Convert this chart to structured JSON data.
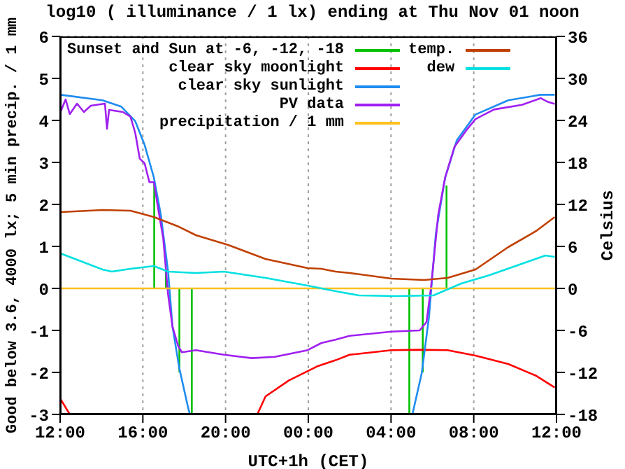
{
  "chart_data": {
    "type": "line",
    "title": "log10 ( illuminance / 1 lx) ending at Thu Nov 01 noon",
    "xlabel": "UTC+1h (CET)",
    "ylabel": "Good below 3.6, 4000 lx; 5 min precip. / 1 mm",
    "y2label": "Celsius",
    "xlim": [
      "--10-31T12:00",
      "--11-01T12:00"
    ],
    "xticks": [
      {
        "value": "--10-31T12:00",
        "label": "12:00"
      },
      {
        "value": "--10-31T16:00",
        "label": "16:00"
      },
      {
        "value": "--10-31T20:00",
        "label": "20:00"
      },
      {
        "value": "--11-01T00:00",
        "label": "00:00"
      },
      {
        "value": "--11-01T04:00",
        "label": "04:00"
      },
      {
        "value": "--11-01T08:00",
        "label": "08:00"
      },
      {
        "value": "--11-01T12:00",
        "label": "12:00"
      }
    ],
    "ylim": [
      -3,
      6
    ],
    "yticks": [
      -3,
      -2,
      -1,
      0,
      1,
      2,
      3,
      4,
      5,
      6
    ],
    "y2lim": [
      -18,
      36
    ],
    "y2ticks": [
      -18,
      -12,
      -6,
      0,
      6,
      12,
      18,
      24,
      30,
      36
    ],
    "grid": true,
    "legend": "top",
    "marker": "none",
    "line_style": "solid",
    "series": [
      {
        "name": "Sunset and Sun at -6, -12, -18",
        "color": "#00c000",
        "x": [
          "--10-31T16:33",
          "--10-31T16:33",
          null,
          "--10-31T17:07",
          "--10-31T17:07",
          null,
          "--10-31T17:46",
          "--10-31T17:46",
          null,
          "--10-31T18:22",
          "--10-31T18:22",
          null,
          "--11-01T04:53",
          "--11-01T04:53",
          null,
          "--11-01T05:32",
          "--11-01T05:32",
          null,
          "--11-01T06:41",
          "--11-01T06:41"
        ],
        "values": [
          0,
          2.5,
          null,
          0,
          0.45,
          null,
          0,
          -2,
          null,
          0,
          -3,
          null,
          0,
          -3,
          null,
          0,
          -2,
          null,
          0,
          2.45
        ]
      },
      {
        "name": "clear sky moonlight",
        "color": "#ff0000",
        "x": [
          "--10-31T12:01",
          "--10-31T12:28",
          null,
          "--10-31T21:32",
          "--10-31T21:56",
          "--10-31T23:04",
          "--11-01T00:25",
          "--11-01T01:19",
          "--11-01T02:00",
          "--11-01T04:01",
          "--11-01T05:23",
          "--11-01T06:44",
          "--11-01T08:05",
          "--11-01T09:40",
          "--11-01T11:01",
          "--11-01T11:55"
        ],
        "values": [
          -2.63,
          -3,
          null,
          -3,
          -2.57,
          -2.19,
          -1.86,
          -1.71,
          -1.58,
          -1.47,
          -1.46,
          -1.47,
          -1.6,
          -1.8,
          -2.08,
          -2.36
        ]
      },
      {
        "name": "clear sky sunlight",
        "color": "#1e8cf0",
        "x": [
          "--10-31T12:01",
          "--10-31T14:03",
          "--10-31T14:57",
          "--10-31T15:38",
          "--10-31T16:05",
          "--10-31T16:32",
          "--10-31T16:52",
          "--10-31T17:13",
          "--10-31T17:26",
          "--10-31T17:46",
          "--10-31T18:13",
          "--10-31T18:17",
          null,
          "--11-01T05:02",
          "--11-01T05:29",
          "--11-01T05:50",
          "--11-01T06:10",
          "--11-01T06:37",
          "--11-01T07:11",
          "--11-01T08:05",
          "--11-01T09:40",
          "--11-01T11:14",
          "--11-01T11:55"
        ],
        "values": [
          4.61,
          4.48,
          4.33,
          3.98,
          3.42,
          2.64,
          1.76,
          0.42,
          -0.91,
          -1.91,
          -2.9,
          -3,
          null,
          -3,
          -2.02,
          -0.69,
          1.31,
          2.64,
          3.53,
          4.14,
          4.48,
          4.61,
          4.61
        ]
      },
      {
        "name": "PV data",
        "color": "#a020f0",
        "x": [
          "--10-31T12:01",
          "--10-31T12:16",
          "--10-31T12:28",
          "--10-31T12:49",
          "--10-31T13:09",
          "--10-31T13:29",
          "--10-31T14:10",
          "--10-31T14:16",
          "--10-31T14:22",
          "--10-31T15:02",
          "--10-31T15:24",
          "--10-31T15:38",
          "--10-31T15:51",
          "--10-31T16:05",
          "--10-31T16:19",
          "--10-31T16:32",
          "--10-31T16:45",
          "--10-31T16:59",
          "--10-31T17:13",
          "--10-31T17:26",
          "--10-31T17:42",
          "--10-31T17:53",
          "--10-31T18:34",
          "--10-31T19:55",
          "--10-31T21:16",
          "--10-31T22:23",
          "--10-31T23:58",
          "--11-01T00:38",
          "--11-01T01:19",
          "--11-01T02:00",
          "--11-01T04:01",
          "--11-01T05:23",
          "--11-01T05:43",
          "--11-01T05:56",
          "--11-01T06:17",
          "--11-01T06:37",
          "--11-01T07:04",
          "--11-01T07:38",
          "--11-01T08:05",
          "--11-01T08:59",
          "--11-01T10:20",
          "--11-01T11:14",
          "--11-01T11:35",
          "--11-01T11:55"
        ],
        "values": [
          4.2,
          4.5,
          4.15,
          4.4,
          4.2,
          4.35,
          4.4,
          3.8,
          4.25,
          4.2,
          4.09,
          3.7,
          3.09,
          2.98,
          2.53,
          2.53,
          1.87,
          1.2,
          -0.13,
          -0.91,
          -1.36,
          -1.52,
          -1.47,
          -1.58,
          -1.66,
          -1.63,
          -1.47,
          -1.3,
          -1.22,
          -1.13,
          -1.03,
          -1.0,
          -0.8,
          0.03,
          1.76,
          2.64,
          3.37,
          3.76,
          4.03,
          4.26,
          4.37,
          4.53,
          4.44,
          4.39
        ]
      },
      {
        "name": "precipitation / 1 mm",
        "color": "#ffc020",
        "x": [
          "--10-31T12:00",
          "--11-01T12:00"
        ],
        "values": [
          0,
          0
        ]
      },
      {
        "name": "temp.",
        "color": "#c04000",
        "axis": "y2",
        "x": [
          "--10-31T12:01",
          "--10-31T14:03",
          "--10-31T15:24",
          "--10-31T16:32",
          "--10-31T17:40",
          "--10-31T18:34",
          "--10-31T20:08",
          "--10-31T21:56",
          "--10-31T23:58",
          "--11-01T00:38",
          "--11-01T01:19",
          "--11-01T02:00",
          "--11-01T04:01",
          "--11-01T05:36",
          "--11-01T06:44",
          "--11-01T08:05",
          "--11-01T09:40",
          "--11-01T11:01",
          "--11-01T11:55"
        ],
        "values": [
          10.9,
          11.2,
          11.1,
          10.2,
          8.9,
          7.6,
          6.2,
          4.2,
          2.9,
          2.8,
          2.4,
          2.2,
          1.4,
          1.2,
          1.5,
          2.7,
          5.9,
          8.2,
          10.2
        ]
      },
      {
        "name": "dew",
        "color": "#00e0e0",
        "axis": "y2",
        "x": [
          "--10-31T12:01",
          "--10-31T14:03",
          "--10-31T14:30",
          "--10-31T15:24",
          "--10-31T16:32",
          "--10-31T17:13",
          "--10-31T18:34",
          "--10-31T19:55",
          "--10-31T21:56",
          "--10-31T23:58",
          "--11-01T01:19",
          "--11-01T02:27",
          "--11-01T04:15",
          "--11-01T06:03",
          "--11-01T07:24",
          "--11-01T08:46",
          "--11-01T10:07",
          "--11-01T11:28",
          "--11-01T11:55"
        ],
        "values": [
          5.0,
          2.7,
          2.4,
          2.8,
          3.2,
          2.4,
          2.2,
          2.4,
          1.5,
          0.4,
          -0.4,
          -1.0,
          -1.1,
          -1.0,
          0.7,
          1.9,
          3.3,
          4.7,
          4.5
        ]
      }
    ]
  }
}
